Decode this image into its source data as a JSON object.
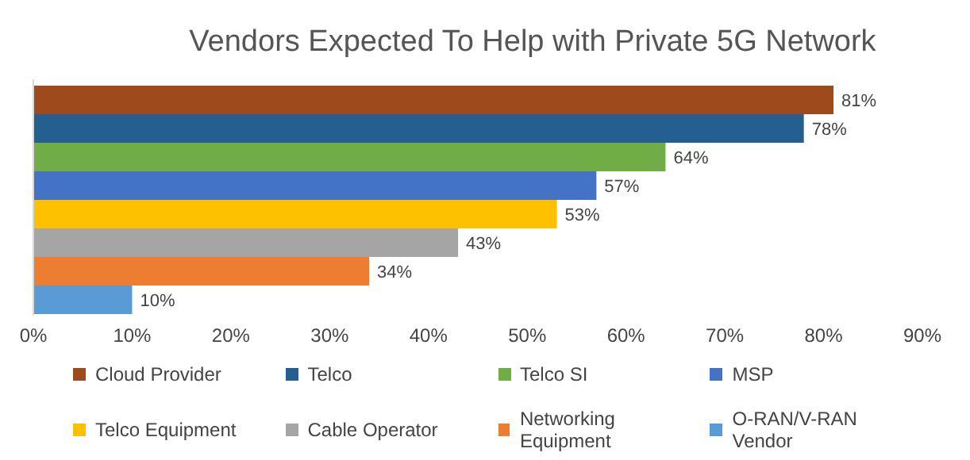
{
  "chart_data": {
    "type": "bar",
    "orientation": "horizontal",
    "title": "Vendors Expected To Help with Private 5G Network",
    "categories": [
      null
    ],
    "series": [
      {
        "name": "Cloud Provider",
        "color": "#9e4a1c",
        "values": [
          81
        ],
        "value_labels": [
          "81%"
        ]
      },
      {
        "name": "Telco",
        "color": "#255e91",
        "values": [
          78
        ],
        "value_labels": [
          "78%"
        ]
      },
      {
        "name": "Telco SI",
        "color": "#70ad47",
        "values": [
          64
        ],
        "value_labels": [
          "64%"
        ]
      },
      {
        "name": "MSP",
        "color": "#4472c4",
        "values": [
          57
        ],
        "value_labels": [
          "57%"
        ]
      },
      {
        "name": "Telco Equipment",
        "color": "#ffc000",
        "values": [
          53
        ],
        "value_labels": [
          "53%"
        ]
      },
      {
        "name": "Cable Operator",
        "color": "#a5a5a5",
        "values": [
          43
        ],
        "value_labels": [
          "43%"
        ]
      },
      {
        "name": "Networking Equipment",
        "color": "#ed7d31",
        "values": [
          34
        ],
        "value_labels": [
          "34%"
        ]
      },
      {
        "name": "O-RAN/V-RAN Vendor",
        "color": "#5b9bd5",
        "values": [
          10
        ],
        "value_labels": [
          "10%"
        ]
      }
    ],
    "xlim": [
      0,
      90
    ],
    "xticks": [
      {
        "value": 0,
        "label": "0%"
      },
      {
        "value": 10,
        "label": "10%"
      },
      {
        "value": 20,
        "label": "20%"
      },
      {
        "value": 30,
        "label": "30%"
      },
      {
        "value": 40,
        "label": "40%"
      },
      {
        "value": 50,
        "label": "50%"
      },
      {
        "value": 60,
        "label": "60%"
      },
      {
        "value": 70,
        "label": "70%"
      },
      {
        "value": 80,
        "label": "80%"
      },
      {
        "value": 90,
        "label": "90%"
      }
    ],
    "legend": "bottom",
    "grid": false
  }
}
